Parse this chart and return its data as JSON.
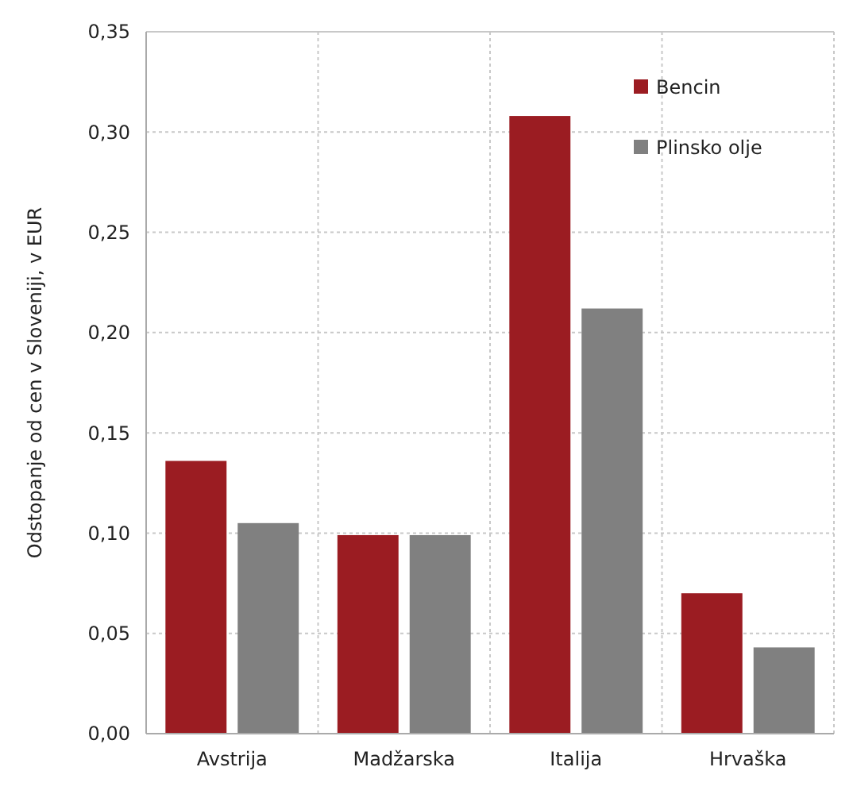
{
  "chart_data": {
    "type": "bar",
    "ylabel": "Odstopanje od cen v Sloveniji, v EUR",
    "categories": [
      "Avstrija",
      "Madžarska",
      "Italija",
      "Hrvaška"
    ],
    "series": [
      {
        "name": "Bencin",
        "color": "#9b1c22",
        "values": [
          0.136,
          0.099,
          0.308,
          0.07
        ]
      },
      {
        "name": "Plinsko olje",
        "color": "#808080",
        "values": [
          0.105,
          0.099,
          0.212,
          0.043
        ]
      }
    ],
    "ylim": [
      0,
      0.35
    ],
    "yticks": [
      {
        "value": 0,
        "label": "0,00"
      },
      {
        "value": 0.05,
        "label": "0,05"
      },
      {
        "value": 0.1,
        "label": "0,10"
      },
      {
        "value": 0.15,
        "label": "0,15"
      },
      {
        "value": 0.2,
        "label": "0,20"
      },
      {
        "value": 0.25,
        "label": "0,25"
      },
      {
        "value": 0.3,
        "label": "0,30"
      },
      {
        "value": 0.35,
        "label": "0,35"
      }
    ],
    "grid": true,
    "legend": "top right"
  }
}
